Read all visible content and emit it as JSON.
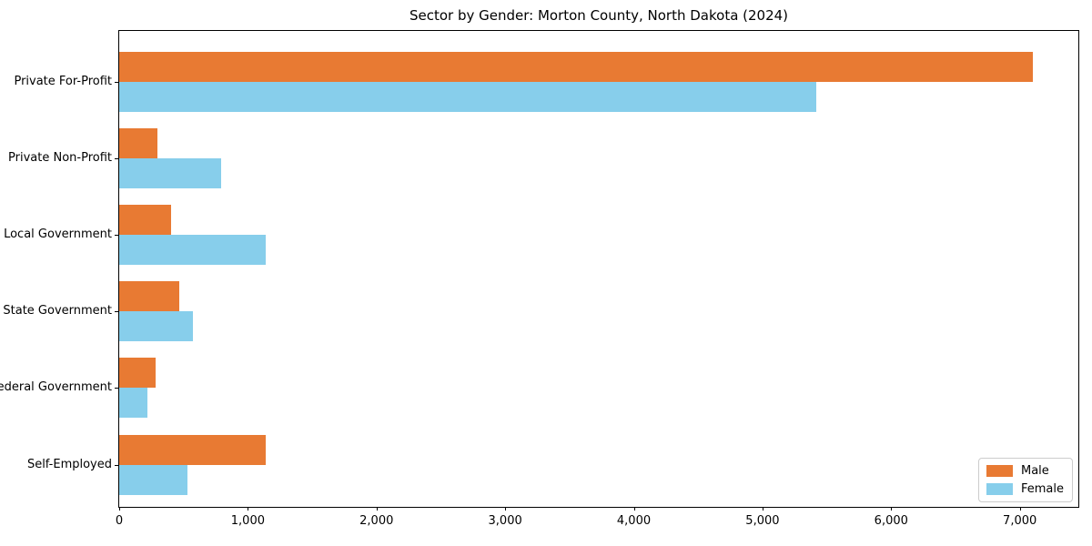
{
  "figure": {
    "title": "Sector by Gender: Morton County, North Dakota (2024)"
  },
  "chart_data": {
    "type": "bar",
    "orientation": "horizontal",
    "title": "Sector by Gender: Morton County, North Dakota (2024)",
    "categories": [
      "Private For-Profit",
      "Private Non-Profit",
      "Local Government",
      "State Government",
      "Federal Government",
      "Self-Employed"
    ],
    "series": [
      {
        "name": "Male",
        "color": "#e87a33",
        "values": [
          7100,
          300,
          400,
          470,
          280,
          1140
        ]
      },
      {
        "name": "Female",
        "color": "#87ceeb",
        "values": [
          5420,
          790,
          1140,
          570,
          220,
          530
        ]
      }
    ],
    "xlabel": "",
    "ylabel": "",
    "xlim": [
      0,
      7455
    ],
    "xticks": [
      0,
      1000,
      2000,
      3000,
      4000,
      5000,
      6000,
      7000
    ],
    "xtick_labels": [
      "0",
      "1,000",
      "2,000",
      "3,000",
      "4,000",
      "5,000",
      "6,000",
      "7,000"
    ],
    "grid": false,
    "legend_position": "lower right",
    "legend": {
      "items": [
        {
          "label": "Male",
          "color": "#e87a33"
        },
        {
          "label": "Female",
          "color": "#87ceeb"
        }
      ]
    },
    "colors": {
      "male": "#e87a33",
      "female": "#87ceeb",
      "spine": "#000000",
      "legend_border": "#cccccc",
      "background": "#ffffff"
    }
  }
}
